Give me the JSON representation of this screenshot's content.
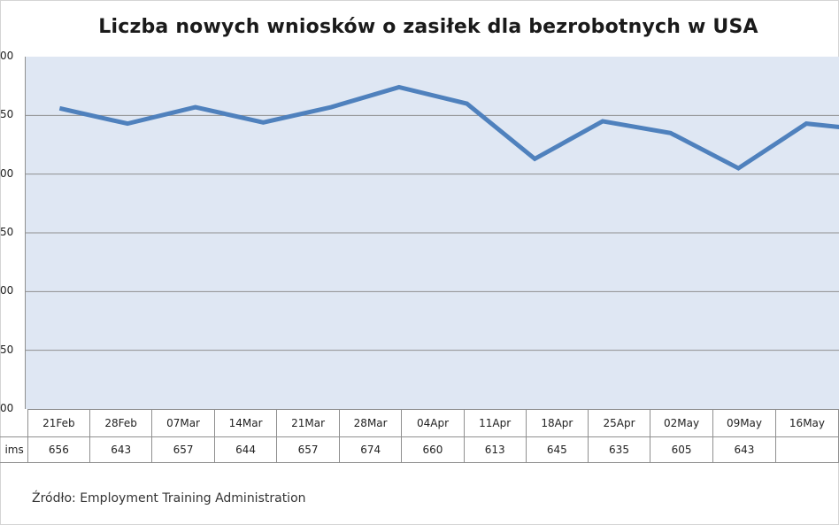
{
  "chart_data": {
    "type": "line",
    "title": "Liczba nowych wniosków o zasiłek dla bezrobotnych w USA",
    "categories": [
      "21Feb",
      "28Feb",
      "07Mar",
      "14Mar",
      "21Mar",
      "28Mar",
      "04Apr",
      "11Apr",
      "18Apr",
      "25Apr",
      "02May",
      "09May",
      "16May"
    ],
    "series": [
      {
        "name": "Claims",
        "values": [
          656,
          643,
          657,
          644,
          657,
          674,
          660,
          613,
          645,
          635,
          605,
          643,
          637
        ]
      }
    ],
    "value_labels": [
      "656",
      "643",
      "657",
      "644",
      "657",
      "674",
      "660",
      "613",
      "645",
      "635",
      "605",
      "643"
    ],
    "row_label": "ims",
    "yticks": [
      "00",
      "50",
      "00",
      "50",
      "00",
      "50",
      "00"
    ],
    "ylim": [
      400,
      700
    ],
    "ytick_step": 50,
    "grid": true,
    "line_color": "#4f81bd",
    "plot_background": "#dfe7f3",
    "source": "Źródło:  Employment Training Administration"
  }
}
